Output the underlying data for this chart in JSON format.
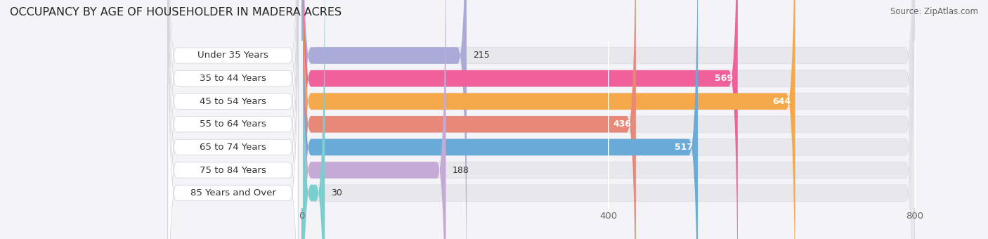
{
  "title": "OCCUPANCY BY AGE OF HOUSEHOLDER IN MADERA ACRES",
  "source": "Source: ZipAtlas.com",
  "categories": [
    "Under 35 Years",
    "35 to 44 Years",
    "45 to 54 Years",
    "55 to 64 Years",
    "65 to 74 Years",
    "75 to 84 Years",
    "85 Years and Over"
  ],
  "values": [
    215,
    569,
    644,
    436,
    517,
    188,
    30
  ],
  "bar_colors": [
    "#aaaad8",
    "#f0609a",
    "#f4a84a",
    "#e88878",
    "#6aaad8",
    "#c4aad4",
    "#7acece"
  ],
  "label_bg_color": "#ffffff",
  "track_color": "#e8e8ec",
  "track_right_color": "#f0f0f4",
  "background_color": "#f4f4f8",
  "xlim_left": -220,
  "xlim_right": 870,
  "xmax": 800,
  "xticks": [
    0,
    400,
    800
  ],
  "bar_height": 0.72,
  "title_fontsize": 11.5,
  "label_fontsize": 9.5,
  "value_fontsize": 9.0,
  "source_fontsize": 8.5,
  "value_threshold": 400
}
